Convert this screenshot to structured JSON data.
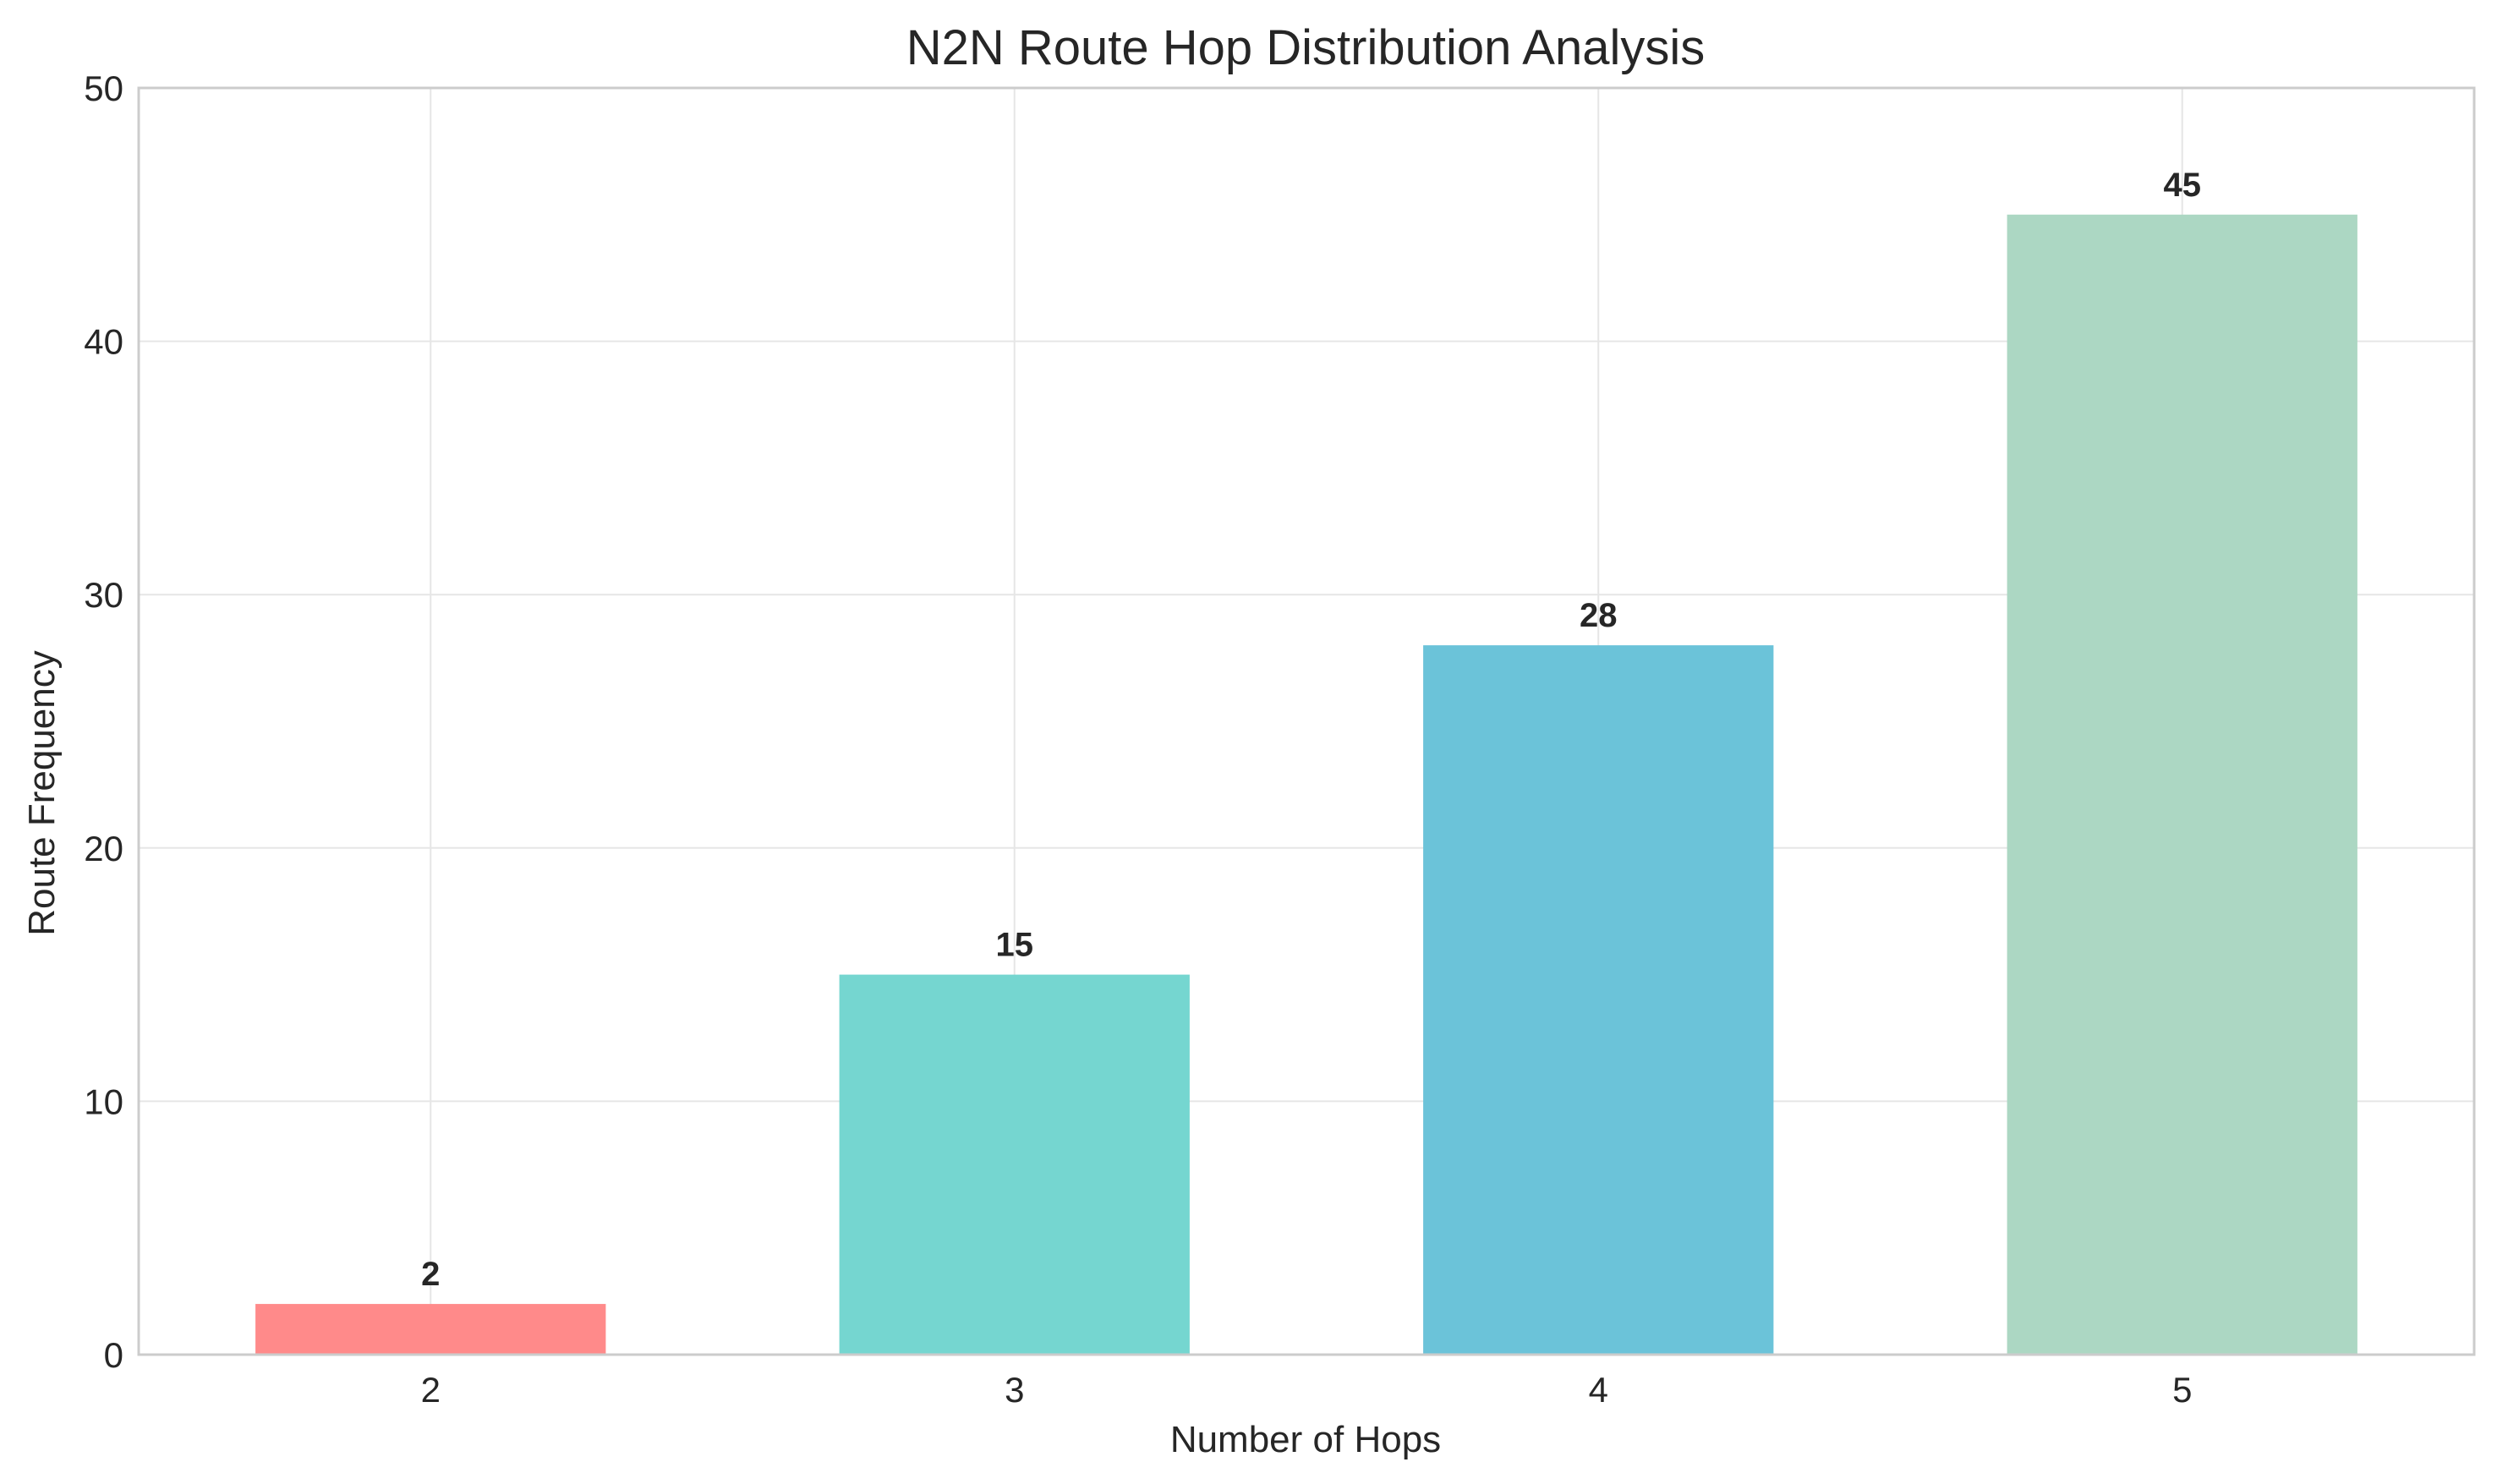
{
  "chart_data": {
    "type": "bar",
    "title": "N2N Route Hop Distribution Analysis",
    "xlabel": "Number of Hops",
    "ylabel": "Route Frequency",
    "categories": [
      "2",
      "3",
      "4",
      "5"
    ],
    "values": [
      2,
      15,
      28,
      45
    ],
    "value_labels": [
      "2",
      "15",
      "28",
      "45"
    ],
    "colors": [
      "#ff8a8a",
      "#75d6d0",
      "#6bc3d9",
      "#acd7c3"
    ],
    "ylim": [
      0,
      50
    ],
    "yticks": [
      0,
      10,
      20,
      30,
      40,
      50
    ],
    "ytick_labels": [
      "0",
      "10",
      "20",
      "30",
      "40",
      "50"
    ],
    "grid": true,
    "legend": "none"
  }
}
